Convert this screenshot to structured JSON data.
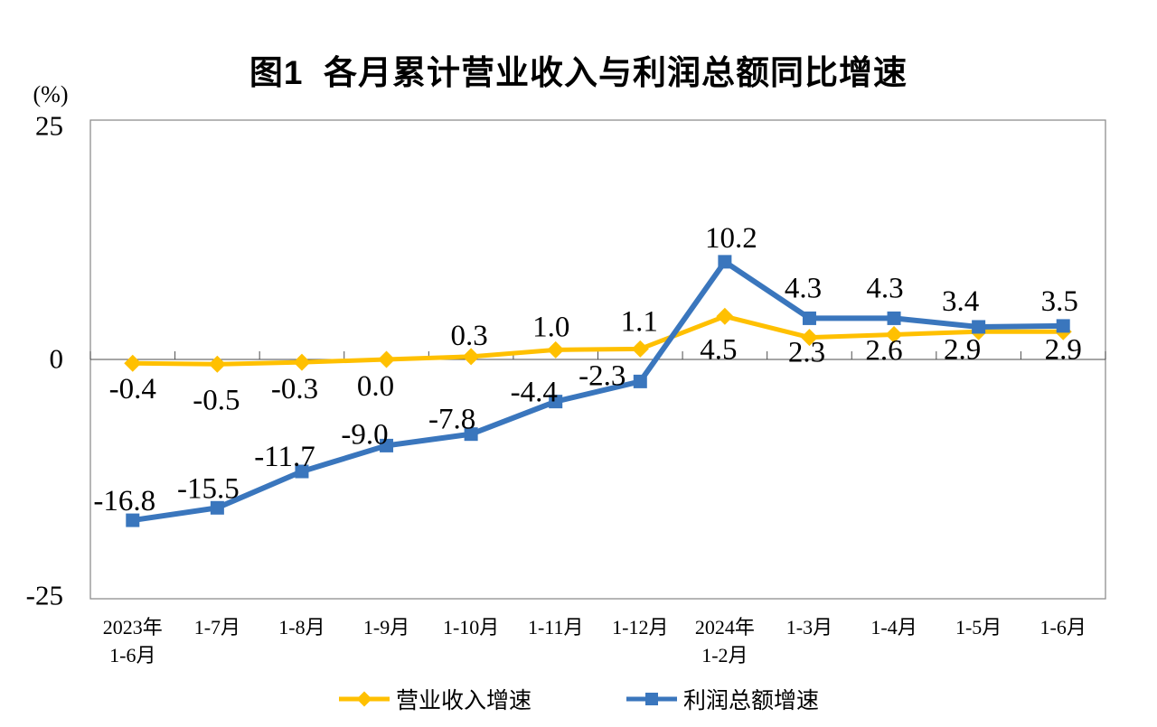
{
  "title": "图1  各月累计营业收入与利润总额同比增速",
  "chart_data": {
    "type": "line",
    "title": "图1  各月累计营业收入与利润总额同比增速",
    "y_unit": "(%)",
    "ylim": [
      -25,
      25
    ],
    "y_ticks": [
      {
        "label": "25",
        "value": 25
      },
      {
        "label": "0",
        "value": 0
      },
      {
        "label": "-25",
        "value": -25
      }
    ],
    "grid": false,
    "legend_position": "bottom",
    "categories": [
      [
        "2023年",
        "1-6月"
      ],
      [
        "1-7月"
      ],
      [
        "1-8月"
      ],
      [
        "1-9月"
      ],
      [
        "1-10月"
      ],
      [
        "1-11月"
      ],
      [
        "1-12月"
      ],
      [
        "2024年",
        "1-2月"
      ],
      [
        "1-3月"
      ],
      [
        "1-4月"
      ],
      [
        "1-5月"
      ],
      [
        "1-6月"
      ]
    ],
    "series": [
      {
        "name": "营业收入增速",
        "color": "#FFC000",
        "marker": "diamond",
        "line_width": 5,
        "values": [
          -0.4,
          -0.5,
          -0.3,
          0.0,
          0.3,
          1.0,
          1.1,
          4.5,
          2.3,
          2.6,
          2.9,
          2.9
        ],
        "labels": [
          "-0.4",
          "-0.5",
          "-0.3",
          "0.0",
          "0.3",
          "1.0",
          "1.1",
          "4.5",
          "2.3",
          "2.6",
          "2.9",
          "2.9"
        ]
      },
      {
        "name": "利润总额增速",
        "color": "#3A76BD",
        "marker": "square",
        "line_width": 6,
        "values": [
          -16.8,
          -15.5,
          -11.7,
          -9.0,
          -7.8,
          -4.4,
          -2.3,
          10.2,
          4.3,
          4.3,
          3.4,
          3.5
        ],
        "labels": [
          "-16.8",
          "-15.5",
          "-11.7",
          "-9.0",
          "-7.8",
          "-4.4",
          "-2.3",
          "10.2",
          "4.3",
          "4.3",
          "3.4",
          "3.5"
        ]
      }
    ]
  },
  "colors": {
    "axis_line": "#4D4D4D",
    "plot_border": "#8F8F8F",
    "text": "#000000",
    "background": "#FFFFFF"
  }
}
